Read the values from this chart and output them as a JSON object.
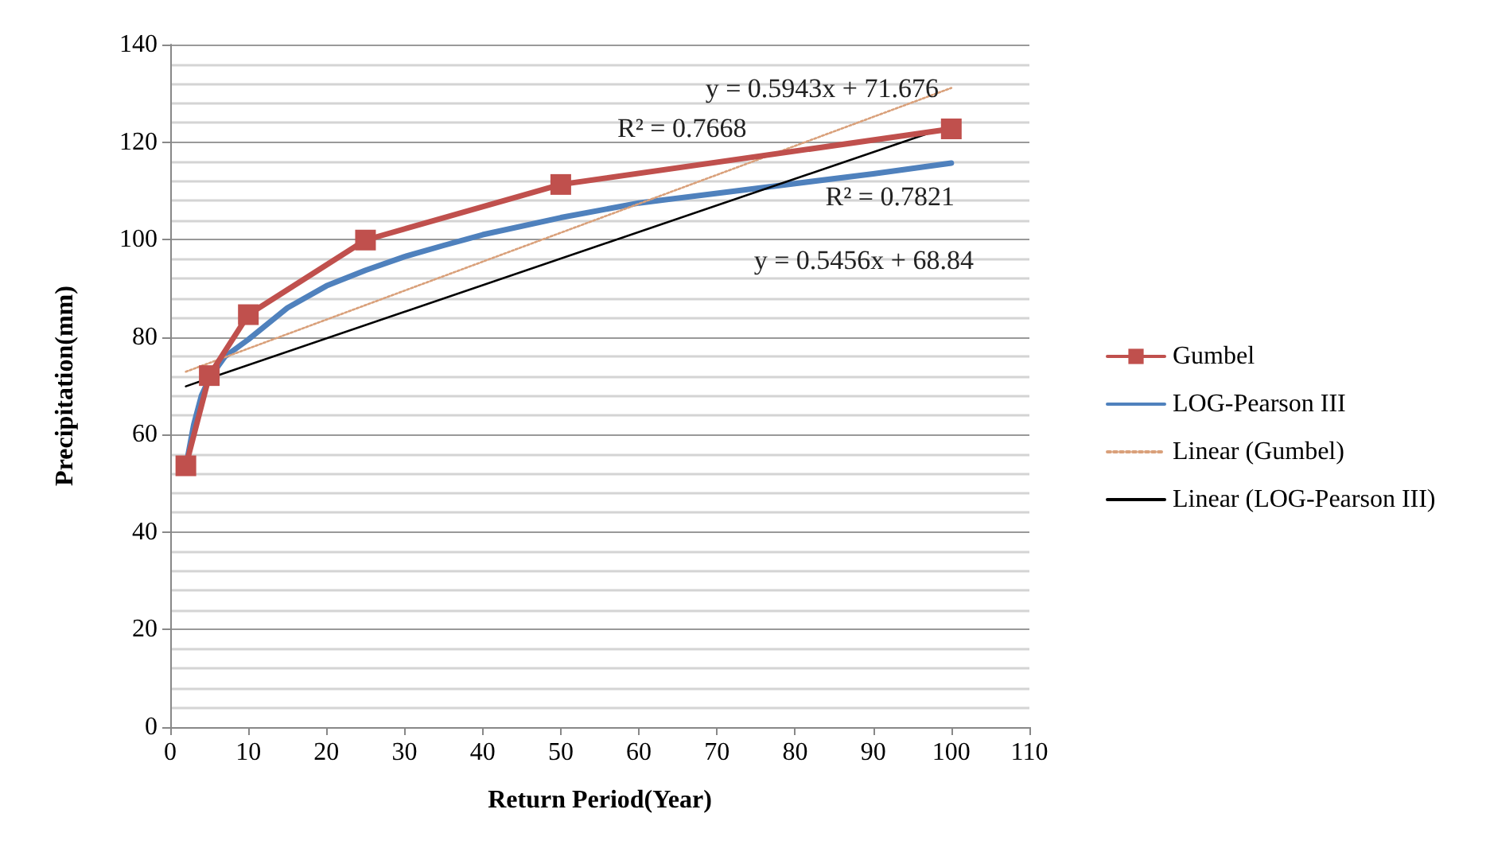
{
  "chart_data": {
    "type": "line",
    "xlabel": "Return Period(Year)",
    "ylabel": "Precipitation(mm)",
    "xlim": [
      0,
      110
    ],
    "xticks": [
      0,
      10,
      20,
      30,
      40,
      50,
      60,
      70,
      80,
      90,
      100,
      110
    ],
    "ylim": [
      0,
      140
    ],
    "yticks": [
      0,
      20,
      40,
      60,
      80,
      100,
      120,
      140
    ],
    "grid": "y",
    "legend": "right",
    "series": [
      {
        "name": "Gumbel",
        "color": "#c0504d",
        "marker": "square",
        "x": [
          2,
          5,
          10,
          25,
          50,
          100
        ],
        "values": [
          53.6,
          72.1,
          84.6,
          99.9,
          111.3,
          122.7
        ]
      },
      {
        "name": "LOG-Pearson III",
        "color": "#4f81bd",
        "marker": "none",
        "x": [
          2,
          3,
          4,
          5,
          7,
          10,
          15,
          20,
          25,
          30,
          35,
          40,
          50,
          60,
          70,
          80,
          90,
          100
        ],
        "values": [
          53.4,
          62,
          68,
          71.5,
          76,
          79.5,
          86,
          90.5,
          93.7,
          96.5,
          98.8,
          101,
          104.5,
          107.5,
          109.5,
          111.5,
          113.5,
          115.7
        ]
      },
      {
        "name": "Linear (Gumbel)",
        "color": "#d9a07a",
        "marker": "none",
        "line_style": "dotted",
        "x": [
          2,
          100
        ],
        "values": [
          72.9,
          131.1
        ]
      },
      {
        "name": "Linear (LOG-Pearson III)",
        "color": "#000000",
        "marker": "none",
        "line_style": "solid",
        "x": [
          2,
          100
        ],
        "values": [
          69.9,
          123.4
        ]
      }
    ],
    "annotations": [
      "y = 0.5943x + 71.676",
      "R² = 0.7668",
      "R² = 0.7821",
      "y = 0.5456x + 68.84"
    ]
  }
}
